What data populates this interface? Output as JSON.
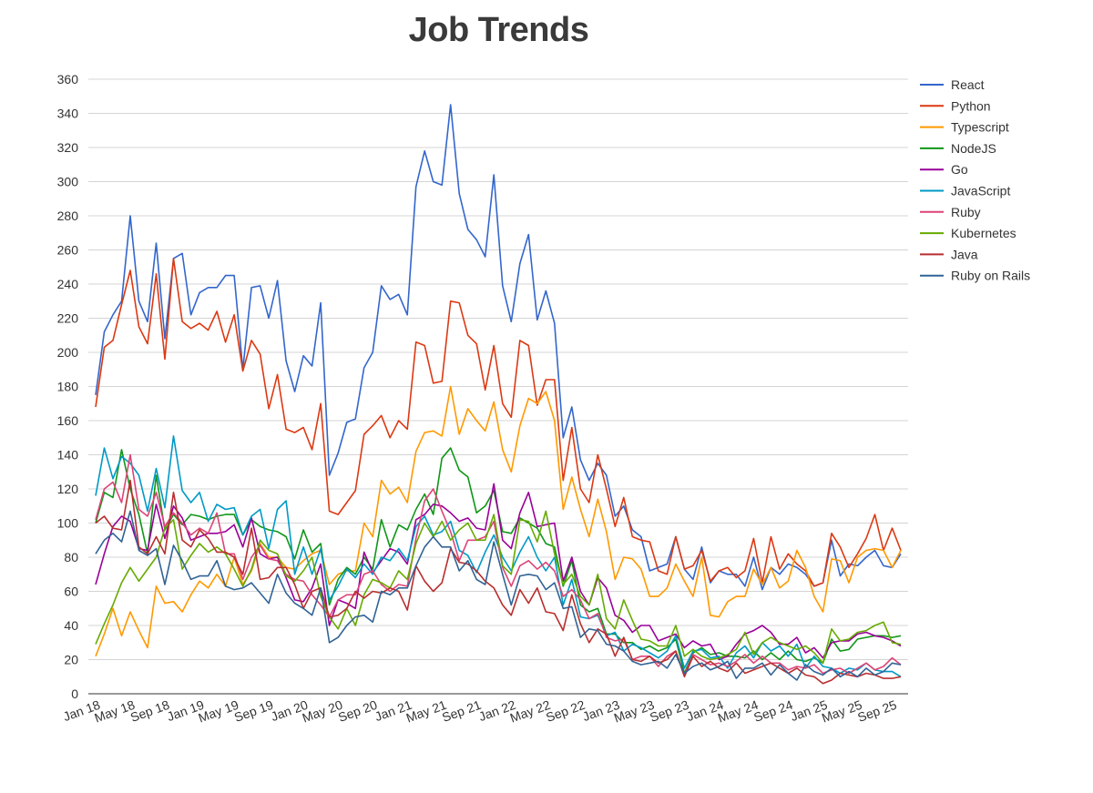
{
  "chart_data": {
    "type": "line",
    "title": "Job Trends",
    "xlabel": "",
    "ylabel": "",
    "ylim": [
      0,
      360
    ],
    "yticks": [
      0,
      20,
      40,
      60,
      80,
      100,
      120,
      140,
      160,
      180,
      200,
      220,
      240,
      260,
      280,
      300,
      320,
      340,
      360
    ],
    "x_tick_labels": [
      "Jan 18",
      "May 18",
      "Sep 18",
      "Jan 19",
      "May 19",
      "Sep 19",
      "Jan 20",
      "May 20",
      "Sep 20",
      "Jan 21",
      "May 21",
      "Sep 21",
      "Jan 22",
      "May 22",
      "Sep 22",
      "Jan 23",
      "May 23",
      "Sep 23",
      "Jan 24",
      "May 24",
      "Sep 24",
      "Jan 25",
      "May 25",
      "Sep 25"
    ],
    "x_start": "Jan 18",
    "x_end": "Sep 25",
    "grid": true,
    "legend_position": "right",
    "series": [
      {
        "name": "React",
        "color": "#3366cc",
        "values": [
          175,
          212,
          222,
          230,
          280,
          230,
          218,
          264,
          208,
          255,
          258,
          222,
          235,
          238,
          238,
          245,
          245,
          190,
          238,
          239,
          220,
          242,
          195,
          177,
          198,
          192,
          229,
          128,
          141,
          159,
          161,
          191,
          200,
          239,
          231,
          234,
          222,
          297,
          318,
          300,
          298,
          345,
          293,
          272,
          266,
          256,
          304,
          239,
          218,
          252,
          269,
          219,
          236,
          217,
          150,
          168,
          137,
          125,
          135,
          128,
          104,
          110,
          96,
          92,
          72,
          74,
          76,
          92,
          73,
          67,
          86,
          65,
          72,
          70,
          70,
          63,
          80,
          61,
          74,
          70,
          76,
          74,
          70,
          63,
          65,
          90,
          69,
          76,
          75,
          80,
          84,
          75,
          74,
          82
        ]
      },
      {
        "name": "Python",
        "color": "#dc3912",
        "values": [
          168,
          203,
          207,
          228,
          248,
          215,
          205,
          246,
          196,
          255,
          218,
          214,
          217,
          213,
          224,
          206,
          222,
          189,
          207,
          199,
          167,
          187,
          155,
          153,
          156,
          143,
          170,
          107,
          105,
          112,
          119,
          152,
          157,
          163,
          150,
          160,
          155,
          206,
          204,
          182,
          183,
          230,
          229,
          210,
          205,
          178,
          204,
          170,
          162,
          207,
          204,
          169,
          184,
          184,
          125,
          156,
          120,
          112,
          140,
          120,
          98,
          115,
          92,
          90,
          89,
          72,
          70,
          92,
          73,
          75,
          84,
          66,
          72,
          74,
          68,
          72,
          91,
          65,
          92,
          73,
          82,
          76,
          72,
          63,
          65,
          94,
          86,
          74,
          82,
          91,
          105,
          84,
          97,
          84
        ]
      },
      {
        "name": "Typescript",
        "color": "#ff9900",
        "values": [
          22,
          35,
          50,
          34,
          48,
          37,
          27,
          63,
          53,
          54,
          48,
          58,
          66,
          62,
          70,
          63,
          80,
          64,
          72,
          88,
          80,
          80,
          74,
          73,
          78,
          82,
          84,
          64,
          70,
          72,
          72,
          100,
          92,
          125,
          117,
          121,
          112,
          142,
          153,
          154,
          151,
          180,
          152,
          167,
          160,
          154,
          171,
          143,
          130,
          157,
          173,
          170,
          177,
          160,
          108,
          127,
          108,
          92,
          114,
          95,
          67,
          80,
          79,
          73,
          57,
          57,
          62,
          76,
          66,
          57,
          80,
          46,
          45,
          54,
          57,
          57,
          73,
          64,
          74,
          62,
          66,
          84,
          74,
          57,
          48,
          79,
          78,
          65,
          80,
          84,
          85,
          84,
          74,
          84
        ]
      },
      {
        "name": "NodeJS",
        "color": "#109618",
        "values": [
          100,
          118,
          115,
          143,
          120,
          105,
          82,
          128,
          96,
          105,
          99,
          105,
          104,
          102,
          104,
          105,
          105,
          93,
          102,
          98,
          96,
          95,
          92,
          79,
          96,
          83,
          88,
          52,
          67,
          74,
          70,
          80,
          73,
          102,
          86,
          99,
          96,
          108,
          117,
          105,
          138,
          144,
          131,
          127,
          106,
          110,
          119,
          95,
          94,
          103,
          100,
          97,
          88,
          86,
          63,
          78,
          52,
          48,
          50,
          35,
          35,
          30,
          30,
          26,
          28,
          25,
          27,
          32,
          12,
          24,
          27,
          23,
          24,
          22,
          22,
          21,
          25,
          20,
          24,
          20,
          25,
          20,
          19,
          21,
          18,
          32,
          25,
          26,
          32,
          33,
          34,
          34,
          33,
          34
        ]
      },
      {
        "name": "Go",
        "color": "#990099",
        "values": [
          64,
          82,
          98,
          104,
          101,
          85,
          84,
          111,
          91,
          110,
          103,
          90,
          92,
          94,
          94,
          95,
          99,
          86,
          103,
          82,
          79,
          80,
          68,
          55,
          54,
          62,
          76,
          40,
          55,
          53,
          50,
          83,
          71,
          78,
          85,
          83,
          76,
          102,
          105,
          111,
          110,
          106,
          101,
          103,
          97,
          96,
          123,
          90,
          85,
          106,
          118,
          98,
          99,
          100,
          66,
          80,
          60,
          52,
          68,
          62,
          46,
          43,
          36,
          40,
          40,
          31,
          33,
          35,
          27,
          31,
          28,
          29,
          20,
          22,
          29,
          35,
          37,
          40,
          36,
          29,
          29,
          33,
          24,
          27,
          21,
          30,
          31,
          31,
          35,
          36,
          34,
          33,
          31,
          28
        ]
      },
      {
        "name": "JavaScript",
        "color": "#0099c6",
        "values": [
          116,
          144,
          126,
          139,
          135,
          128,
          107,
          132,
          109,
          151,
          119,
          112,
          118,
          101,
          111,
          108,
          109,
          93,
          104,
          108,
          85,
          108,
          113,
          70,
          86,
          70,
          85,
          55,
          63,
          73,
          68,
          76,
          70,
          80,
          78,
          85,
          78,
          98,
          104,
          93,
          95,
          101,
          84,
          81,
          71,
          83,
          93,
          80,
          72,
          83,
          92,
          80,
          72,
          80,
          52,
          67,
          45,
          44,
          46,
          34,
          36,
          25,
          29,
          27,
          24,
          21,
          25,
          34,
          15,
          25,
          26,
          21,
          22,
          15,
          24,
          28,
          21,
          30,
          25,
          28,
          22,
          29,
          15,
          22,
          16,
          15,
          12,
          15,
          14,
          18,
          14,
          13,
          13,
          10
        ]
      },
      {
        "name": "Ruby",
        "color": "#dd4477",
        "values": [
          102,
          120,
          124,
          112,
          140,
          108,
          104,
          118,
          98,
          106,
          100,
          93,
          97,
          94,
          106,
          82,
          82,
          67,
          80,
          87,
          79,
          78,
          70,
          67,
          66,
          58,
          52,
          45,
          55,
          58,
          58,
          70,
          72,
          64,
          60,
          64,
          63,
          91,
          113,
          120,
          107,
          95,
          78,
          90,
          90,
          92,
          101,
          74,
          63,
          75,
          78,
          73,
          77,
          72,
          57,
          61,
          55,
          44,
          47,
          33,
          31,
          32,
          20,
          22,
          22,
          16,
          22,
          25,
          11,
          23,
          20,
          17,
          18,
          16,
          19,
          23,
          18,
          22,
          18,
          18,
          14,
          16,
          15,
          17,
          12,
          14,
          15,
          12,
          15,
          18,
          14,
          16,
          21,
          17
        ]
      },
      {
        "name": "Kubernetes",
        "color": "#66aa00",
        "values": [
          29,
          41,
          52,
          65,
          74,
          66,
          73,
          80,
          97,
          102,
          73,
          81,
          88,
          83,
          86,
          82,
          73,
          63,
          73,
          90,
          84,
          82,
          69,
          66,
          72,
          80,
          57,
          45,
          38,
          50,
          40,
          58,
          67,
          65,
          62,
          72,
          67,
          88,
          100,
          92,
          101,
          90,
          96,
          100,
          90,
          90,
          105,
          75,
          70,
          102,
          101,
          89,
          107,
          82,
          64,
          70,
          57,
          52,
          70,
          44,
          38,
          55,
          43,
          32,
          31,
          28,
          28,
          40,
          22,
          26,
          22,
          20,
          21,
          23,
          26,
          36,
          23,
          30,
          33,
          30,
          28,
          26,
          28,
          24,
          18,
          38,
          31,
          32,
          36,
          37,
          40,
          42,
          30,
          29
        ]
      },
      {
        "name": "Java",
        "color": "#b82e2e",
        "values": [
          100,
          104,
          97,
          96,
          125,
          86,
          82,
          92,
          82,
          118,
          90,
          86,
          96,
          91,
          83,
          83,
          80,
          70,
          97,
          67,
          68,
          74,
          74,
          64,
          50,
          60,
          62,
          45,
          46,
          50,
          60,
          56,
          60,
          59,
          62,
          60,
          49,
          75,
          66,
          60,
          65,
          85,
          77,
          76,
          72,
          66,
          62,
          52,
          46,
          61,
          53,
          62,
          48,
          47,
          37,
          58,
          41,
          30,
          38,
          35,
          22,
          33,
          20,
          19,
          22,
          18,
          20,
          25,
          10,
          22,
          16,
          19,
          15,
          13,
          18,
          12,
          14,
          16,
          18,
          15,
          12,
          15,
          11,
          10,
          6,
          8,
          12,
          11,
          10,
          12,
          11,
          9,
          9,
          10
        ]
      },
      {
        "name": "Ruby on Rails",
        "color": "#316395",
        "values": [
          82,
          90,
          94,
          89,
          107,
          84,
          81,
          85,
          64,
          87,
          78,
          67,
          69,
          69,
          78,
          63,
          61,
          62,
          65,
          59,
          53,
          70,
          59,
          53,
          50,
          46,
          62,
          30,
          33,
          40,
          45,
          46,
          42,
          60,
          58,
          62,
          62,
          75,
          86,
          92,
          86,
          86,
          72,
          78,
          67,
          64,
          89,
          70,
          52,
          69,
          70,
          69,
          61,
          65,
          50,
          51,
          33,
          38,
          37,
          29,
          28,
          25,
          19,
          17,
          18,
          19,
          15,
          23,
          12,
          16,
          18,
          14,
          16,
          19,
          9,
          15,
          15,
          18,
          11,
          17,
          12,
          8,
          17,
          13,
          11,
          15,
          10,
          13,
          10,
          15,
          11,
          13,
          18,
          17
        ]
      }
    ]
  }
}
